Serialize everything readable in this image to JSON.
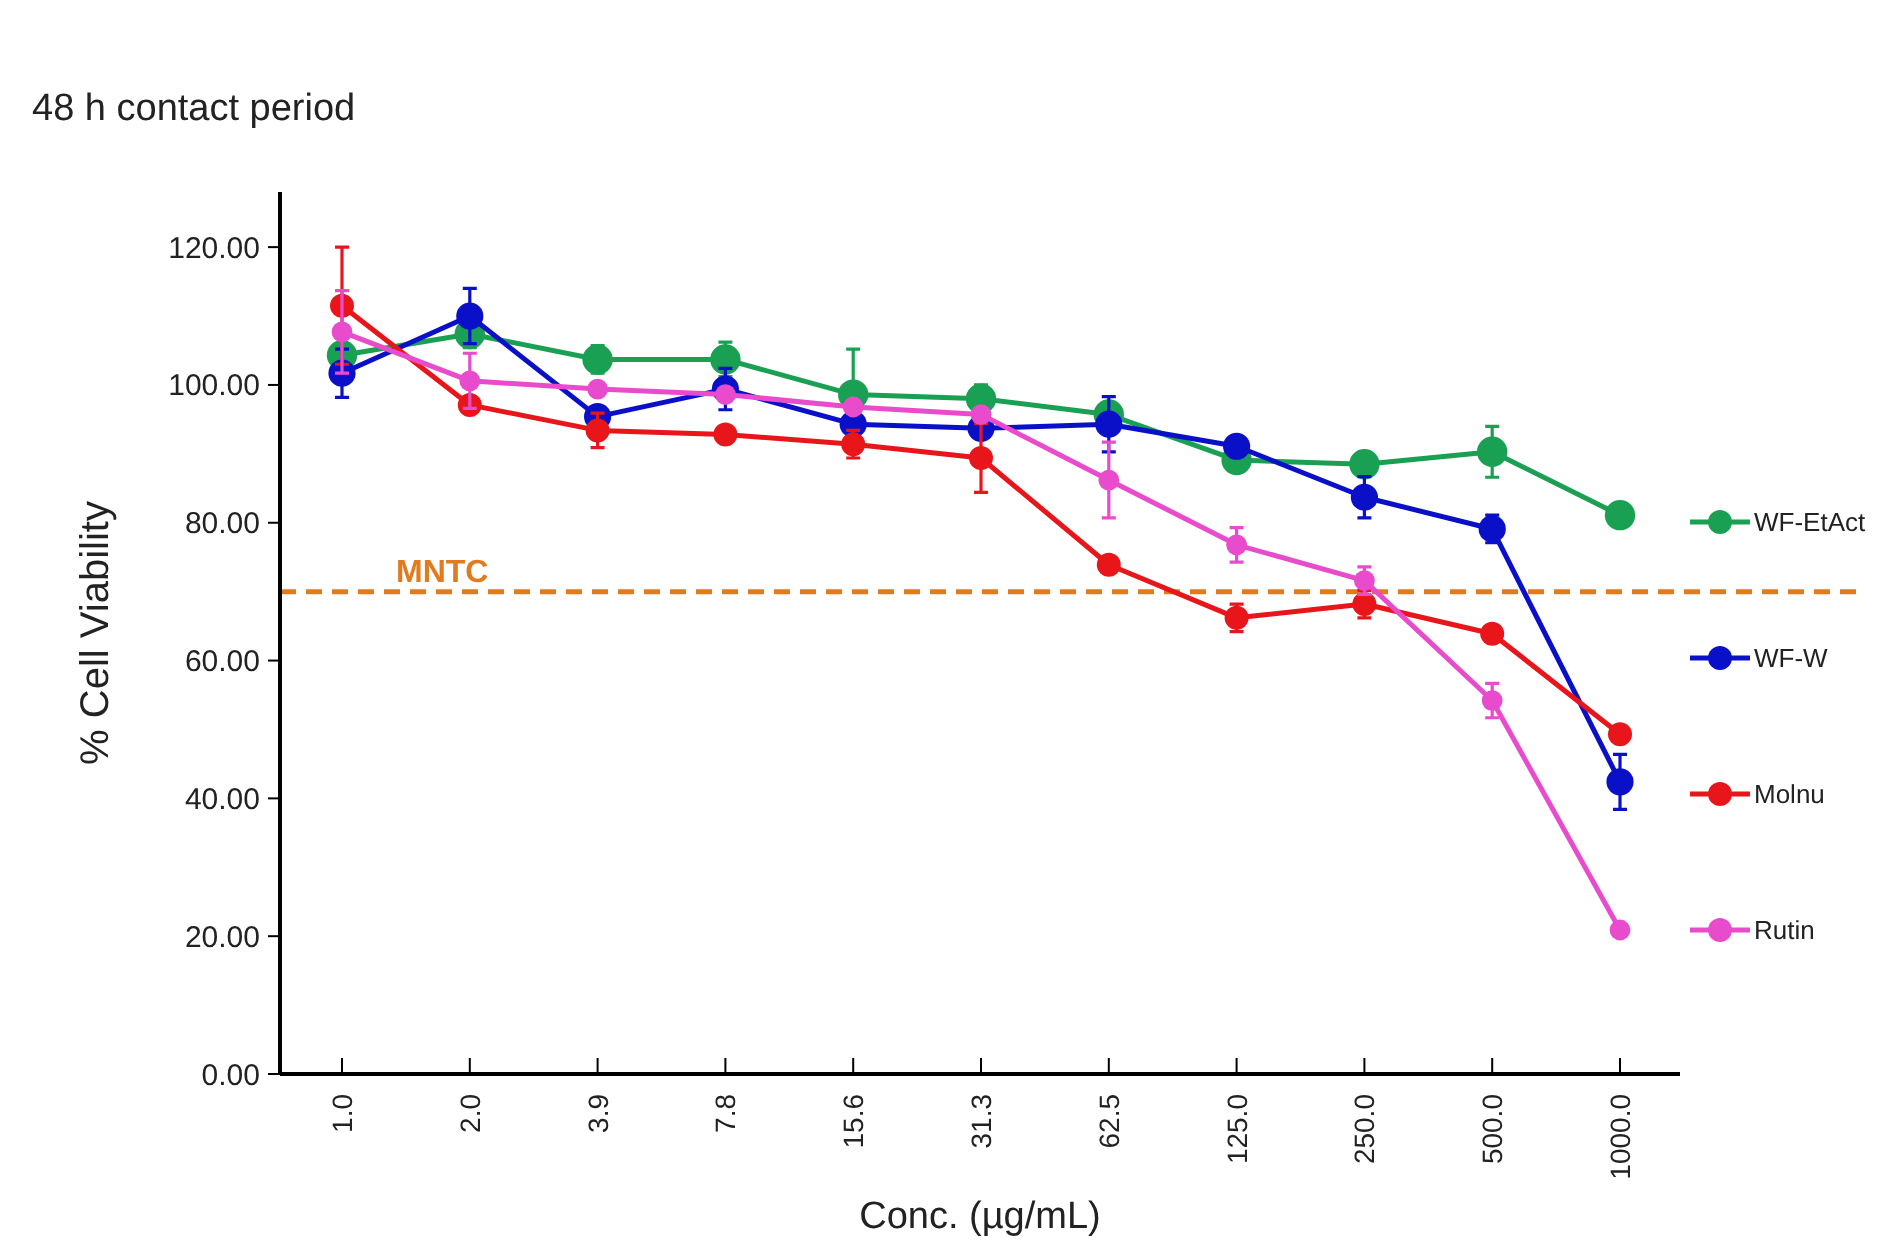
{
  "chart_data": {
    "type": "line",
    "title": "48 h contact period",
    "xlabel": "Conc. (µg/mL)",
    "ylabel": "% Cell Viability",
    "categories": [
      "1.0",
      "2.0",
      "3.9",
      "7.8",
      "15.6",
      "31.3",
      "62.5",
      "125.0",
      "250.0",
      "500.0",
      "1000.0"
    ],
    "ylim": [
      0,
      128
    ],
    "yticks": [
      {
        "value": 0,
        "label": "0.00"
      },
      {
        "value": 20,
        "label": "20.00"
      },
      {
        "value": 40,
        "label": "40.00"
      },
      {
        "value": 60,
        "label": "60.00"
      },
      {
        "value": 80,
        "label": "80.00"
      },
      {
        "value": 100,
        "label": "100.00"
      },
      {
        "value": 120,
        "label": "120.00"
      }
    ],
    "grid": false,
    "legend": "right",
    "marker": "circle",
    "line_style": "solid",
    "series": [
      {
        "name": "WF-EtAct",
        "color": "#1aa053",
        "values": [
          104.3,
          107.4,
          103.7,
          103.7,
          98.6,
          98.0,
          95.7,
          89.1,
          88.5,
          90.3,
          81.1
        ],
        "errors": [
          null,
          2,
          2,
          2.5,
          6.6,
          2,
          null,
          null,
          null,
          3.7,
          null
        ]
      },
      {
        "name": "WF-W",
        "color": "#0a10c8",
        "values": [
          101.7,
          110.0,
          95.4,
          99.4,
          94.3,
          93.7,
          94.3,
          91.1,
          83.7,
          79.1,
          42.4
        ],
        "errors": [
          3.5,
          4,
          null,
          3,
          null,
          null,
          4,
          null,
          3,
          2,
          4
        ]
      },
      {
        "name": "Molnu",
        "color": "#e8161b",
        "values": [
          111.5,
          97.1,
          93.4,
          92.8,
          91.4,
          89.4,
          73.9,
          66.2,
          68.2,
          63.9,
          49.3
        ],
        "errors": [
          8.5,
          null,
          2.5,
          null,
          2,
          5,
          null,
          2,
          2,
          null,
          null
        ]
      },
      {
        "name": "Rutin",
        "color": "#e84ccc",
        "values": [
          107.7,
          100.6,
          99.4,
          98.6,
          96.8,
          95.7,
          86.2,
          76.8,
          71.6,
          54.2,
          20.9
        ],
        "errors": [
          6,
          4,
          null,
          null,
          null,
          null,
          5.5,
          2.5,
          2,
          2.5,
          null
        ]
      }
    ],
    "ref_lines": [
      {
        "axis": "y",
        "value": 70,
        "label": "MNTC",
        "color": "#e07b20",
        "line_style": "dashed"
      }
    ]
  }
}
